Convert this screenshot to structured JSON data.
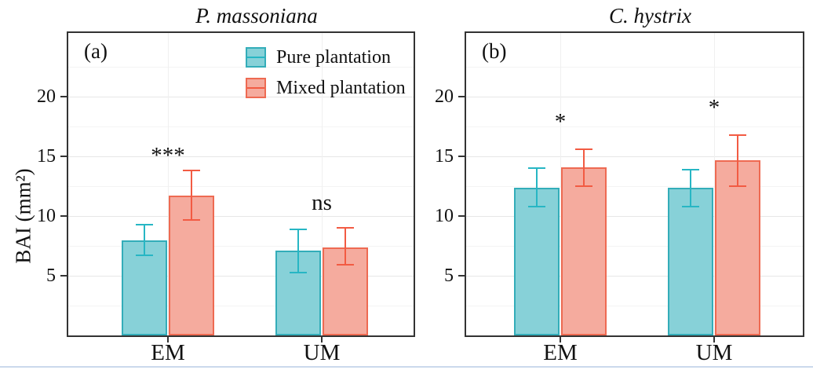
{
  "figure": {
    "y_axis_label": "BAI (mm²)"
  },
  "legend": {
    "items": [
      {
        "label": "Pure plantation"
      },
      {
        "label": "Mixed plantation"
      }
    ]
  },
  "chart_data": {
    "type": "bar",
    "ylabel": "BAI (mm²)",
    "ylim": [
      0,
      25.35
    ],
    "yticks": [
      5,
      10,
      15,
      20
    ],
    "yticks_minor": [
      2.5,
      7.5,
      12.5,
      17.5,
      22.5
    ],
    "categories": [
      "EM",
      "UM"
    ],
    "grid": true,
    "legend_position": "top-right-inside-panel-a",
    "series": [
      {
        "name": "Pure plantation",
        "fill": "#87D1D8",
        "border": "#33ADB9",
        "error_color": "#27B6C4"
      },
      {
        "name": "Mixed plantation",
        "fill": "#F5AB9E",
        "border": "#EE6A52",
        "error_color": "#F25B43"
      }
    ],
    "panels": [
      {
        "tag": "(a)",
        "title": "P. massoniana",
        "groups": [
          {
            "category": "EM",
            "significance": "***",
            "sig_y": 15.1,
            "bars": [
              {
                "series": "Pure plantation",
                "mean": 8.0,
                "ci_low": 6.7,
                "ci_high": 9.3
              },
              {
                "series": "Mixed plantation",
                "mean": 11.7,
                "ci_low": 9.7,
                "ci_high": 13.8
              }
            ]
          },
          {
            "category": "UM",
            "significance": "ns",
            "sig_y": 11.1,
            "bars": [
              {
                "series": "Pure plantation",
                "mean": 7.1,
                "ci_low": 5.3,
                "ci_high": 8.9
              },
              {
                "series": "Mixed plantation",
                "mean": 7.4,
                "ci_low": 5.9,
                "ci_high": 9.0
              }
            ]
          }
        ]
      },
      {
        "tag": "(b)",
        "title": "C. hystrix",
        "groups": [
          {
            "category": "EM",
            "significance": "*",
            "sig_y": 17.9,
            "bars": [
              {
                "series": "Pure plantation",
                "mean": 12.4,
                "ci_low": 10.8,
                "ci_high": 14.0
              },
              {
                "series": "Mixed plantation",
                "mean": 14.1,
                "ci_low": 12.5,
                "ci_high": 15.6
              }
            ]
          },
          {
            "category": "UM",
            "significance": "*",
            "sig_y": 19.1,
            "bars": [
              {
                "series": "Pure plantation",
                "mean": 12.4,
                "ci_low": 10.8,
                "ci_high": 13.9
              },
              {
                "series": "Mixed plantation",
                "mean": 14.7,
                "ci_low": 12.5,
                "ci_high": 16.8
              }
            ]
          }
        ]
      }
    ],
    "colors": {
      "grid_major": "#E7E7E7",
      "grid_minor": "#F4F4F4",
      "grid_vertical": "#F0F0F0",
      "axis": "#333333",
      "text": "#111111",
      "page_edge_line": "#CBD9EC"
    }
  }
}
